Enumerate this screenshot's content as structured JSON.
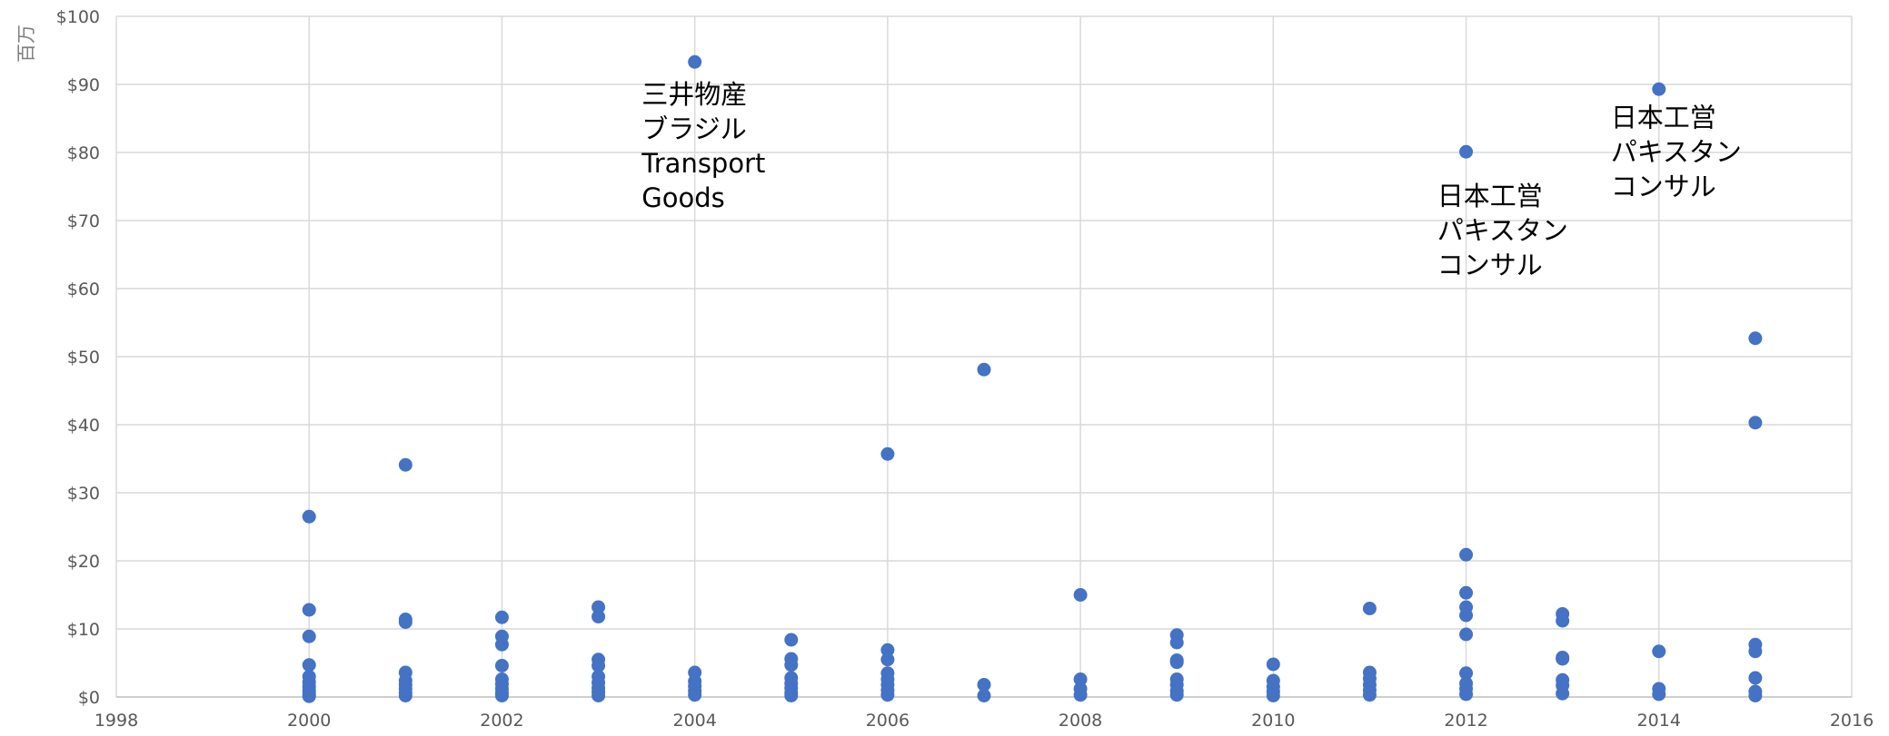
{
  "chart_data": {
    "type": "scatter",
    "title": "",
    "xlabel": "",
    "ylabel": "",
    "unit_label": "百万",
    "xlim": [
      1998,
      2016
    ],
    "ylim": [
      0,
      100
    ],
    "x_ticks": [
      1998,
      2000,
      2002,
      2004,
      2006,
      2008,
      2010,
      2012,
      2014,
      2016
    ],
    "y_ticks": [
      0,
      10,
      20,
      30,
      40,
      50,
      60,
      70,
      80,
      90,
      100
    ],
    "y_tick_prefix": "$",
    "grid": true,
    "marker_color": "#4472c4",
    "points": [
      {
        "x": 2000,
        "y": 26.5
      },
      {
        "x": 2000,
        "y": 12.8
      },
      {
        "x": 2000,
        "y": 8.9
      },
      {
        "x": 2000,
        "y": 4.7
      },
      {
        "x": 2000,
        "y": 3.0
      },
      {
        "x": 2000,
        "y": 2.2
      },
      {
        "x": 2000,
        "y": 1.5
      },
      {
        "x": 2000,
        "y": 0.9
      },
      {
        "x": 2000,
        "y": 0.4
      },
      {
        "x": 2000,
        "y": 0.1
      },
      {
        "x": 2001,
        "y": 34.1
      },
      {
        "x": 2001,
        "y": 11.4
      },
      {
        "x": 2001,
        "y": 11.0
      },
      {
        "x": 2001,
        "y": 3.6
      },
      {
        "x": 2001,
        "y": 2.4
      },
      {
        "x": 2001,
        "y": 1.8
      },
      {
        "x": 2001,
        "y": 1.2
      },
      {
        "x": 2001,
        "y": 0.6
      },
      {
        "x": 2001,
        "y": 0.2
      },
      {
        "x": 2002,
        "y": 11.7
      },
      {
        "x": 2002,
        "y": 8.9
      },
      {
        "x": 2002,
        "y": 7.7
      },
      {
        "x": 2002,
        "y": 4.6
      },
      {
        "x": 2002,
        "y": 2.6
      },
      {
        "x": 2002,
        "y": 1.9
      },
      {
        "x": 2002,
        "y": 1.2
      },
      {
        "x": 2002,
        "y": 0.6
      },
      {
        "x": 2002,
        "y": 0.2
      },
      {
        "x": 2003,
        "y": 13.2
      },
      {
        "x": 2003,
        "y": 11.8
      },
      {
        "x": 2003,
        "y": 5.5
      },
      {
        "x": 2003,
        "y": 4.6
      },
      {
        "x": 2003,
        "y": 3.0
      },
      {
        "x": 2003,
        "y": 2.1
      },
      {
        "x": 2003,
        "y": 1.3
      },
      {
        "x": 2003,
        "y": 0.7
      },
      {
        "x": 2003,
        "y": 0.2
      },
      {
        "x": 2004,
        "y": 93.3
      },
      {
        "x": 2004,
        "y": 3.6
      },
      {
        "x": 2004,
        "y": 2.3
      },
      {
        "x": 2004,
        "y": 1.6
      },
      {
        "x": 2004,
        "y": 0.9
      },
      {
        "x": 2004,
        "y": 0.3
      },
      {
        "x": 2005,
        "y": 8.4
      },
      {
        "x": 2005,
        "y": 5.6
      },
      {
        "x": 2005,
        "y": 4.7
      },
      {
        "x": 2005,
        "y": 2.8
      },
      {
        "x": 2005,
        "y": 2.0
      },
      {
        "x": 2005,
        "y": 1.3
      },
      {
        "x": 2005,
        "y": 0.6
      },
      {
        "x": 2005,
        "y": 0.2
      },
      {
        "x": 2006,
        "y": 35.7
      },
      {
        "x": 2006,
        "y": 6.9
      },
      {
        "x": 2006,
        "y": 5.5
      },
      {
        "x": 2006,
        "y": 3.5
      },
      {
        "x": 2006,
        "y": 2.6
      },
      {
        "x": 2006,
        "y": 1.8
      },
      {
        "x": 2006,
        "y": 1.0
      },
      {
        "x": 2006,
        "y": 0.3
      },
      {
        "x": 2007,
        "y": 48.1
      },
      {
        "x": 2007,
        "y": 1.8
      },
      {
        "x": 2007,
        "y": 0.2
      },
      {
        "x": 2008,
        "y": 15.0
      },
      {
        "x": 2008,
        "y": 2.6
      },
      {
        "x": 2008,
        "y": 1.2
      },
      {
        "x": 2008,
        "y": 0.3
      },
      {
        "x": 2009,
        "y": 9.1
      },
      {
        "x": 2009,
        "y": 8.0
      },
      {
        "x": 2009,
        "y": 5.4
      },
      {
        "x": 2009,
        "y": 5.1
      },
      {
        "x": 2009,
        "y": 2.6
      },
      {
        "x": 2009,
        "y": 1.8
      },
      {
        "x": 2009,
        "y": 0.9
      },
      {
        "x": 2009,
        "y": 0.3
      },
      {
        "x": 2010,
        "y": 4.8
      },
      {
        "x": 2010,
        "y": 2.4
      },
      {
        "x": 2010,
        "y": 1.5
      },
      {
        "x": 2010,
        "y": 0.8
      },
      {
        "x": 2010,
        "y": 0.2
      },
      {
        "x": 2011,
        "y": 13.0
      },
      {
        "x": 2011,
        "y": 3.6
      },
      {
        "x": 2011,
        "y": 2.7
      },
      {
        "x": 2011,
        "y": 1.8
      },
      {
        "x": 2011,
        "y": 1.0
      },
      {
        "x": 2011,
        "y": 0.3
      },
      {
        "x": 2012,
        "y": 80.1
      },
      {
        "x": 2012,
        "y": 20.9
      },
      {
        "x": 2012,
        "y": 15.3
      },
      {
        "x": 2012,
        "y": 13.2
      },
      {
        "x": 2012,
        "y": 12.0
      },
      {
        "x": 2012,
        "y": 9.2
      },
      {
        "x": 2012,
        "y": 3.5
      },
      {
        "x": 2012,
        "y": 2.0
      },
      {
        "x": 2012,
        "y": 1.2
      },
      {
        "x": 2012,
        "y": 0.4
      },
      {
        "x": 2013,
        "y": 12.2
      },
      {
        "x": 2013,
        "y": 11.2
      },
      {
        "x": 2013,
        "y": 5.8
      },
      {
        "x": 2013,
        "y": 5.6
      },
      {
        "x": 2013,
        "y": 2.5
      },
      {
        "x": 2013,
        "y": 1.7
      },
      {
        "x": 2013,
        "y": 0.5
      },
      {
        "x": 2014,
        "y": 89.3
      },
      {
        "x": 2014,
        "y": 6.7
      },
      {
        "x": 2014,
        "y": 1.2
      },
      {
        "x": 2014,
        "y": 0.4
      },
      {
        "x": 2015,
        "y": 52.7
      },
      {
        "x": 2015,
        "y": 40.3
      },
      {
        "x": 2015,
        "y": 7.7
      },
      {
        "x": 2015,
        "y": 6.7
      },
      {
        "x": 2015,
        "y": 2.8
      },
      {
        "x": 2015,
        "y": 0.8
      },
      {
        "x": 2015,
        "y": 0.2
      }
    ],
    "annotations": [
      {
        "lines": [
          "三井物産",
          "ブラジル",
          "Transport",
          "Goods"
        ],
        "x": 2003.45,
        "y": 87.2
      },
      {
        "lines": [
          "日本工営",
          "パキスタン",
          "コンサル"
        ],
        "x": 2011.7,
        "y": 72.3
      },
      {
        "lines": [
          "日本工営",
          "パキスタン",
          "コンサル"
        ],
        "x": 2013.5,
        "y": 83.8
      }
    ]
  }
}
